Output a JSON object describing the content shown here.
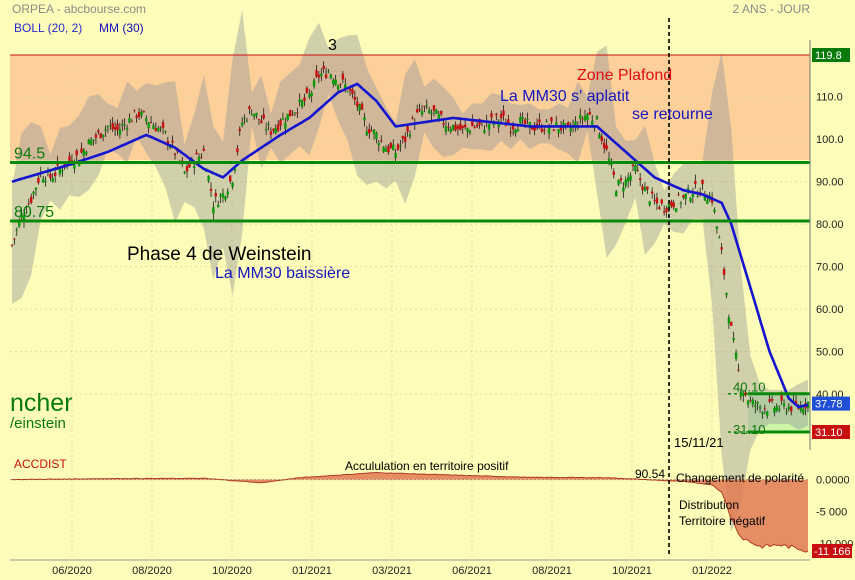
{
  "header": {
    "title": "ORPEA - abcbourse.com",
    "period": "2 ANS - JOUR",
    "legend": [
      {
        "label": "BOLL (20, 2)",
        "color": "#2a2ad0"
      },
      {
        "label": "MM (30)",
        "color": "#1010c0"
      }
    ]
  },
  "chart_data": {
    "type": "line",
    "price_panel": {
      "ylim": [
        30,
        121
      ],
      "y_ticks": [
        {
          "value": 110,
          "label": "110.0"
        },
        {
          "value": 100,
          "label": "100.0"
        },
        {
          "value": 90,
          "label": "90.00"
        },
        {
          "value": 80,
          "label": "80.00"
        },
        {
          "value": 70,
          "label": "70.00"
        },
        {
          "value": 60,
          "label": "60.00"
        },
        {
          "value": 50,
          "label": "50.00"
        },
        {
          "value": 40,
          "label": "40.00"
        }
      ],
      "x_ticks": [
        "06/2020",
        "08/2020",
        "10/2020",
        "01/2021",
        "03/2021",
        "06/2021",
        "08/2021",
        "10/2021",
        "01/2022"
      ],
      "series_close": [
        [
          0,
          75
        ],
        [
          1,
          82
        ],
        [
          2,
          86
        ],
        [
          3,
          92
        ],
        [
          4,
          91
        ],
        [
          5,
          93
        ],
        [
          6,
          95
        ],
        [
          7,
          96
        ],
        [
          8,
          99
        ],
        [
          9,
          101
        ],
        [
          10,
          103
        ],
        [
          11,
          102
        ],
        [
          12,
          104
        ],
        [
          13,
          106
        ],
        [
          14,
          105
        ],
        [
          15,
          103
        ],
        [
          16,
          101
        ],
        [
          17,
          97
        ],
        [
          18,
          92
        ],
        [
          19,
          95
        ],
        [
          20,
          97
        ],
        [
          21,
          85
        ],
        [
          22,
          87
        ],
        [
          23,
          91
        ],
        [
          24,
          104
        ],
        [
          25,
          107
        ],
        [
          26,
          104
        ],
        [
          27,
          102
        ],
        [
          28,
          104
        ],
        [
          29,
          106
        ],
        [
          30,
          108
        ],
        [
          31,
          110
        ],
        [
          32,
          115
        ],
        [
          33,
          116
        ],
        [
          34,
          114
        ],
        [
          35,
          112
        ],
        [
          36,
          108
        ],
        [
          37,
          103
        ],
        [
          38,
          101
        ],
        [
          39,
          98
        ],
        [
          40,
          97
        ],
        [
          41,
          100
        ],
        [
          42,
          105
        ],
        [
          43,
          107
        ],
        [
          44,
          106
        ],
        [
          45,
          104
        ],
        [
          46,
          103
        ],
        [
          47,
          102
        ],
        [
          48,
          103
        ],
        [
          49,
          103
        ],
        [
          50,
          104
        ],
        [
          51,
          105
        ],
        [
          52,
          103
        ],
        [
          53,
          104
        ],
        [
          54,
          103
        ],
        [
          55,
          103
        ],
        [
          56,
          103
        ],
        [
          57,
          103
        ],
        [
          58,
          102
        ],
        [
          59,
          104
        ],
        [
          60,
          106
        ],
        [
          61,
          104
        ],
        [
          62,
          97
        ],
        [
          63,
          89
        ],
        [
          64,
          90
        ],
        [
          65,
          93
        ],
        [
          66,
          88
        ],
        [
          67,
          85
        ],
        [
          68,
          84
        ],
        [
          69,
          85
        ],
        [
          70,
          86
        ],
        [
          71,
          88
        ],
        [
          72,
          88
        ],
        [
          73,
          86
        ],
        [
          74,
          73
        ],
        [
          75,
          55
        ],
        [
          76,
          42
        ],
        [
          77,
          38
        ],
        [
          78,
          37
        ],
        [
          79,
          37
        ],
        [
          80,
          37
        ],
        [
          81,
          37
        ],
        [
          82,
          37
        ],
        [
          83,
          38
        ]
      ],
      "series_mm30": [
        [
          0,
          90
        ],
        [
          3,
          92
        ],
        [
          6,
          94
        ],
        [
          10,
          97
        ],
        [
          14,
          101
        ],
        [
          17,
          98
        ],
        [
          20,
          93
        ],
        [
          22,
          91
        ],
        [
          24,
          95
        ],
        [
          28,
          101
        ],
        [
          31,
          105
        ],
        [
          34,
          111
        ],
        [
          36,
          113
        ],
        [
          38,
          109
        ],
        [
          40,
          103
        ],
        [
          43,
          104
        ],
        [
          46,
          105
        ],
        [
          50,
          104
        ],
        [
          54,
          103
        ],
        [
          58,
          103
        ],
        [
          61,
          103
        ],
        [
          63,
          99
        ],
        [
          65,
          95
        ],
        [
          67,
          91
        ],
        [
          70,
          88
        ],
        [
          72,
          87
        ],
        [
          74,
          85
        ],
        [
          75,
          80
        ],
        [
          77,
          65
        ],
        [
          79,
          50
        ],
        [
          81,
          39
        ],
        [
          82,
          37
        ],
        [
          83,
          37.5
        ]
      ],
      "levels": [
        {
          "value": 119.8,
          "label": "119.8",
          "style": "ceiling"
        },
        {
          "value": 94.5,
          "label": "94.5",
          "style": "support"
        },
        {
          "value": 80.75,
          "label": "80.75",
          "style": "support"
        },
        {
          "value": 40.1,
          "label": "40.10",
          "style": "range"
        },
        {
          "value": 31.1,
          "label": "31.10",
          "style": "range"
        }
      ],
      "badges": [
        {
          "value": 119.8,
          "label": "119.8",
          "color": "#0a7a0a"
        },
        {
          "value": 37.78,
          "label": "37.78",
          "color": "#1f4fd6"
        },
        {
          "value": 31.1,
          "label": "31.10",
          "color": "#c81010"
        }
      ],
      "annotations": [
        {
          "text": "3",
          "color": "#000000"
        },
        {
          "text": "Zone Plafond",
          "color": "#e01010"
        },
        {
          "text": "La MM30 s' aplatit",
          "color": "#1515c0"
        },
        {
          "text": "se retourne",
          "color": "#1515c0"
        },
        {
          "text": "Phase 4 de Weinstein",
          "color": "#000000"
        },
        {
          "text": "La MM30 baissière",
          "color": "#1515c0"
        },
        {
          "text": "ncher",
          "color": "#0a7a0a"
        },
        {
          "text": "/einstein",
          "color": "#0a7a0a"
        },
        {
          "text": "15/11/21",
          "color": "#000000"
        }
      ]
    },
    "accdist_panel": {
      "name": "ACCDIST",
      "ylim": [
        -11166,
        1500
      ],
      "y_ticks": [
        {
          "value": 0,
          "label": "0.0000"
        },
        {
          "value": -5000,
          "label": "-5 000"
        },
        {
          "value": -10000,
          "label": "-10 000"
        }
      ],
      "last_badge": {
        "value": -11166,
        "label": "-11 166"
      },
      "marker_label": "90.54",
      "series": [
        [
          0,
          0
        ],
        [
          10,
          150
        ],
        [
          20,
          200
        ],
        [
          26,
          -500
        ],
        [
          30,
          300
        ],
        [
          38,
          1100
        ],
        [
          46,
          700
        ],
        [
          54,
          350
        ],
        [
          62,
          300
        ],
        [
          66,
          0
        ],
        [
          70,
          -300
        ],
        [
          73,
          -800
        ],
        [
          74,
          -2000
        ],
        [
          75,
          -6000
        ],
        [
          76,
          -9000
        ],
        [
          78,
          -10500
        ],
        [
          80,
          -10200
        ],
        [
          82,
          -10800
        ],
        [
          83,
          -11166
        ]
      ],
      "annotations": [
        {
          "text": "Accululation en territoire positif"
        },
        {
          "text": "Changement de polarité"
        },
        {
          "text": "Distribution"
        },
        {
          "text": "Territoire négatif"
        }
      ]
    }
  }
}
